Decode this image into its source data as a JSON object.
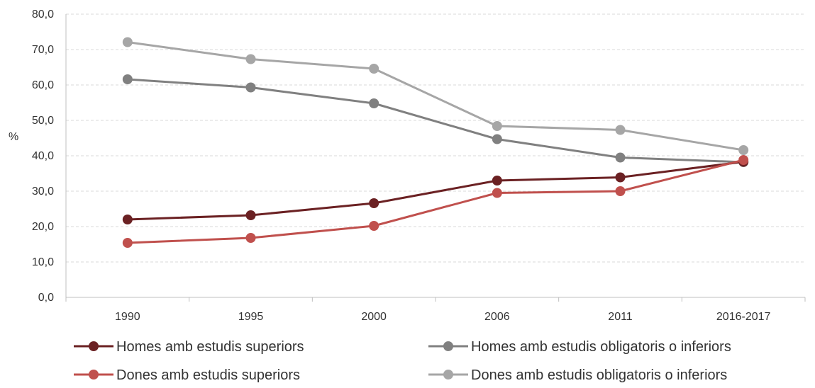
{
  "chart_data": {
    "type": "line",
    "title": "",
    "xlabel": "",
    "ylabel": "%",
    "ylim": [
      0,
      80
    ],
    "yticks": [
      "0,0",
      "10,0",
      "20,0",
      "30,0",
      "40,0",
      "50,0",
      "60,0",
      "70,0",
      "80,0"
    ],
    "grid": "horizontal dashed",
    "legend_position": "bottom",
    "categories": [
      "1990",
      "1995",
      "2000",
      "2006",
      "2011",
      "2016-2017"
    ],
    "series": [
      {
        "name": "Homes amb estudis superiors",
        "color": "#6b2123",
        "values": [
          22.0,
          23.2,
          26.6,
          33.0,
          33.9,
          38.3
        ]
      },
      {
        "name": "Homes amb estudis obligatoris o inferiors",
        "color": "#808080",
        "values": [
          61.6,
          59.3,
          54.8,
          44.7,
          39.5,
          38.2
        ]
      },
      {
        "name": "Dones amb estudis superiors",
        "color": "#c0504d",
        "values": [
          15.4,
          16.8,
          20.2,
          29.5,
          30.0,
          38.8
        ]
      },
      {
        "name": "Dones amb estudis obligatoris o inferiors",
        "color": "#a6a6a6",
        "values": [
          72.1,
          67.3,
          64.6,
          48.4,
          47.3,
          41.6
        ]
      }
    ]
  }
}
